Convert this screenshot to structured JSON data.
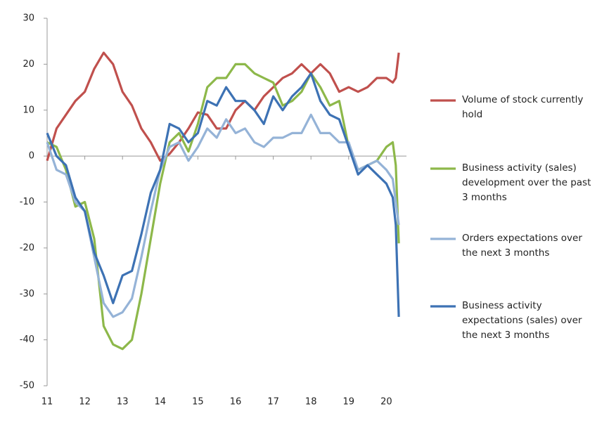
{
  "chart_data": {
    "type": "line",
    "x": [
      11,
      11.25,
      11.5,
      11.75,
      12,
      12.25,
      12.5,
      12.75,
      13,
      13.25,
      13.5,
      13.75,
      14,
      14.25,
      14.5,
      14.75,
      15,
      15.25,
      15.5,
      15.75,
      16,
      16.25,
      16.5,
      16.75,
      17,
      17.25,
      17.5,
      17.75,
      18,
      18.25,
      18.5,
      18.75,
      19,
      19.25,
      19.5,
      19.75,
      20,
      20.17,
      20.25,
      20.33
    ],
    "series": [
      {
        "name": "Volume of stock currently hold",
        "color": "#c0504d",
        "values": [
          -1,
          6,
          9,
          12,
          14,
          19,
          22.5,
          20,
          14,
          11,
          6,
          3,
          -1,
          0.5,
          3,
          6,
          9.5,
          9,
          6,
          6,
          10,
          12,
          10,
          13,
          15,
          17,
          18,
          20,
          18,
          20,
          18,
          14,
          15,
          14,
          15,
          17,
          17,
          16,
          17,
          22.5
        ]
      },
      {
        "name": "Business activity (sales) development over the past 3 months",
        "color": "#8db84a",
        "values": [
          3,
          2,
          -3,
          -11,
          -10,
          -18,
          -37,
          -41,
          -42,
          -40,
          -30,
          -18,
          -6,
          3,
          5,
          1,
          7,
          15,
          17,
          17,
          20,
          20,
          18,
          17,
          16,
          11,
          12,
          14,
          18,
          15,
          11,
          12,
          2,
          -3,
          -2,
          -1,
          2,
          3,
          -2,
          -19
        ]
      },
      {
        "name": "Orders expectations over the next 3 months",
        "color": "#95b3d7",
        "values": [
          3,
          -3,
          -4,
          -10,
          -12,
          -22,
          -32,
          -35,
          -34,
          -31,
          -22,
          -12,
          -3,
          2,
          3,
          -1,
          2,
          6,
          4,
          8,
          5,
          6,
          3,
          2,
          4,
          4,
          5,
          5,
          9,
          5,
          5,
          3,
          3,
          -3,
          -2,
          -1,
          -3,
          -5,
          -10,
          -15
        ]
      },
      {
        "name": "Business activity expectations (sales) over the next 3 months",
        "color": "#3d72b4",
        "values": [
          5,
          0,
          -2,
          -9,
          -12,
          -21,
          -26,
          -32,
          -26,
          -25,
          -17,
          -8,
          -3,
          7,
          6,
          3,
          5,
          12,
          11,
          15,
          12,
          12,
          10,
          7,
          13,
          10,
          13,
          15,
          18,
          12,
          9,
          8,
          2,
          -4,
          -2,
          -4,
          -6,
          -9,
          -15,
          -35
        ]
      }
    ],
    "xlim": [
      11,
      20.33
    ],
    "xticks": [
      11,
      12,
      13,
      14,
      15,
      16,
      17,
      18,
      19,
      20
    ],
    "ylim": [
      -50,
      30
    ],
    "yticks": [
      -50,
      -40,
      -30,
      -20,
      -10,
      0,
      10,
      20,
      30
    ]
  }
}
